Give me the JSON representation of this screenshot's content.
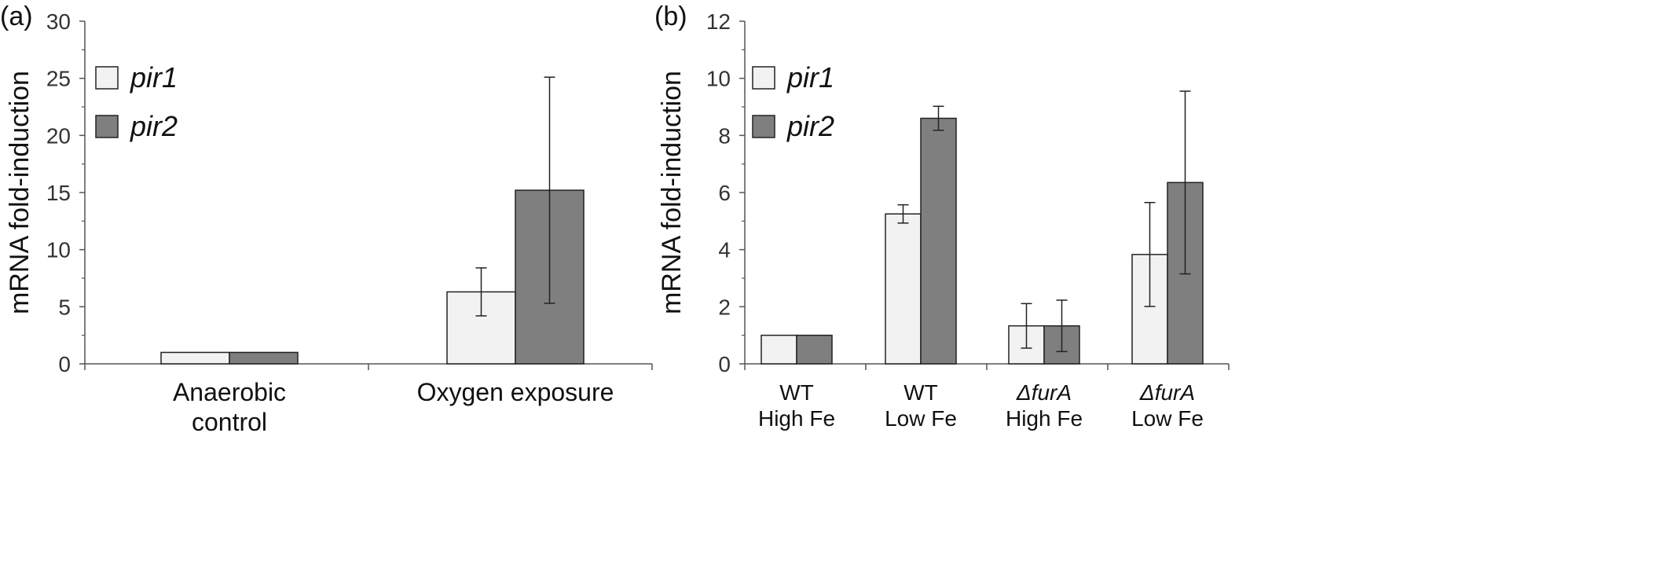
{
  "chart_data": [
    {
      "type": "bar",
      "panel_label": "(a)",
      "ylabel": "mRNA fold-induction",
      "ylim": [
        0,
        30
      ],
      "yticks": [
        0,
        5,
        10,
        15,
        20,
        25,
        30
      ],
      "categories": [
        {
          "lines": [
            "Anaerobic",
            "control"
          ],
          "italic": [
            false,
            false
          ]
        },
        {
          "lines": [
            "Oxygen exposure"
          ],
          "italic": [
            false
          ]
        }
      ],
      "series": [
        {
          "name": "pir1",
          "color": "#f2f2f2",
          "values": [
            1,
            6.3
          ],
          "errors": [
            0,
            2.1
          ]
        },
        {
          "name": "pir2",
          "color": "#7f7f7f",
          "values": [
            1,
            15.2
          ],
          "errors": [
            0,
            9.9
          ]
        }
      ],
      "legend": "top-left"
    },
    {
      "type": "bar",
      "panel_label": "(b)",
      "ylabel": "mRNA fold-induction",
      "ylim": [
        0,
        12
      ],
      "yticks": [
        0,
        2,
        4,
        6,
        8,
        10,
        12
      ],
      "categories": [
        {
          "lines": [
            "WT",
            "High Fe"
          ],
          "italic": [
            false,
            false
          ]
        },
        {
          "lines": [
            "WT",
            "Low Fe"
          ],
          "italic": [
            false,
            false
          ]
        },
        {
          "lines": [
            "ΔfurA",
            "High Fe"
          ],
          "italic": [
            true,
            false
          ]
        },
        {
          "lines": [
            "ΔfurA",
            "Low Fe"
          ],
          "italic": [
            true,
            false
          ]
        }
      ],
      "series": [
        {
          "name": "pir1",
          "color": "#f2f2f2",
          "values": [
            1,
            5.25,
            1.33,
            3.83
          ],
          "errors": [
            0,
            0.32,
            0.78,
            1.82
          ]
        },
        {
          "name": "pir2",
          "color": "#7f7f7f",
          "values": [
            1,
            8.6,
            1.33,
            6.35
          ],
          "errors": [
            0,
            0.42,
            0.9,
            3.2
          ]
        }
      ],
      "legend": "top-left"
    }
  ]
}
